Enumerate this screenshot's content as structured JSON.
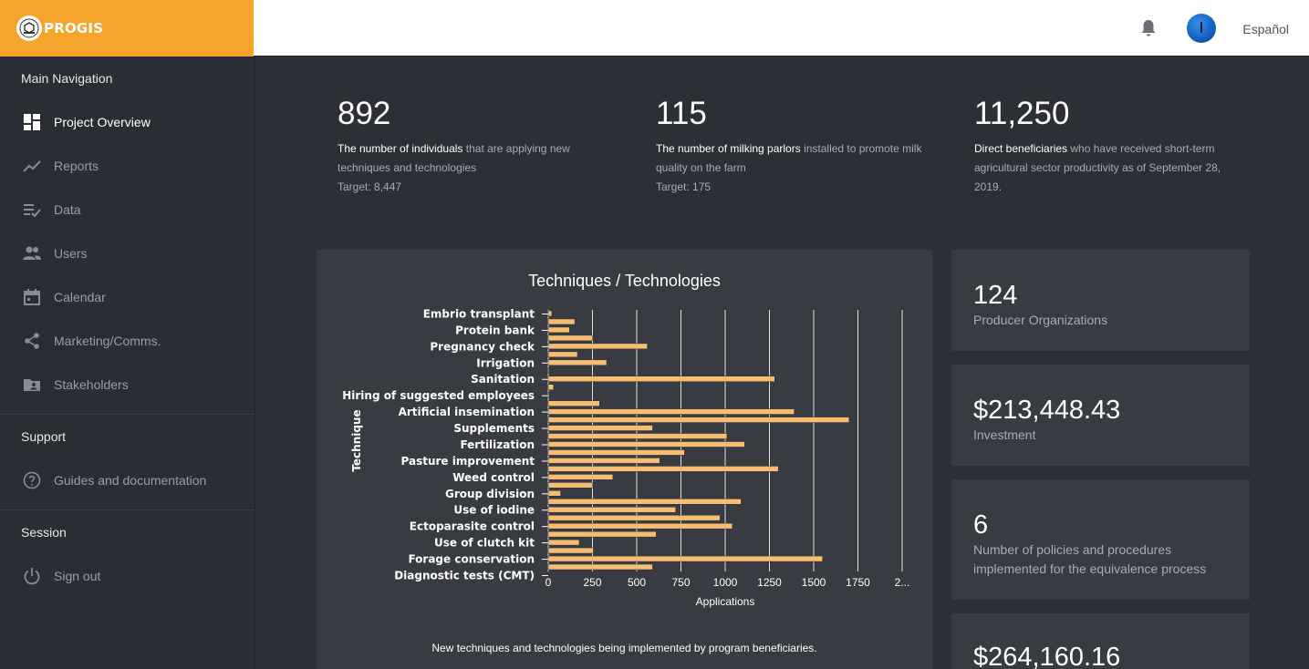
{
  "brand": {
    "name": "PROGIS"
  },
  "header": {
    "language": "Español",
    "icons": [
      "bell-icon",
      "avatar"
    ]
  },
  "sidebar": {
    "main_title": "Main Navigation",
    "items": [
      {
        "label": "Project Overview",
        "icon": "dashboard-icon",
        "active": true
      },
      {
        "label": "Reports",
        "icon": "trending-icon"
      },
      {
        "label": "Data",
        "icon": "list-check-icon"
      },
      {
        "label": "Users",
        "icon": "people-icon"
      },
      {
        "label": "Calendar",
        "icon": "calendar-icon"
      },
      {
        "label": "Marketing/Comms.",
        "icon": "share-icon"
      },
      {
        "label": "Stakeholders",
        "icon": "folder-person-icon"
      }
    ],
    "support_title": "Support",
    "support_items": [
      {
        "label": "Guides and documentation",
        "icon": "help-icon"
      }
    ],
    "session_title": "Session",
    "session_items": [
      {
        "label": "Sign out",
        "icon": "power-icon"
      }
    ]
  },
  "stats": [
    {
      "value": "892",
      "bold": "The number of individuals",
      "rest": " that are applying new techniques and technologies",
      "target": "Target: 8,447"
    },
    {
      "value": "115",
      "bold": "The number of milking parlors",
      "rest": " installed to promote milk quality on the farm",
      "target": "Target: 175"
    },
    {
      "value": "11,250",
      "bold": "Direct beneficiaries",
      "rest": " who have received short-term agricultural sector productivity as of September 28, 2019.",
      "target": ""
    }
  ],
  "kpis": [
    {
      "value": "124",
      "label": "Producer Organizations"
    },
    {
      "value": "$213,448.43",
      "label": "Investment"
    },
    {
      "value": "6",
      "label": "Number of policies and procedures implemented for the equivalence process"
    },
    {
      "value": "$264,160.16",
      "label": ""
    }
  ],
  "chart_data": {
    "type": "bar",
    "orientation": "horizontal",
    "title": "Techniques / Technologies",
    "xlabel": "Applications",
    "ylabel": "Technique",
    "caption": "New techniques and technologies being implemented by program beneficiaries.",
    "xlim": [
      0,
      2000
    ],
    "x_ticks": [
      "0",
      "250",
      "500",
      "750",
      "1000",
      "1250",
      "1500",
      "1750",
      "2..."
    ],
    "grid": true,
    "bar_color": "#f6be72",
    "labeled_categories": [
      "Embrio transplant",
      "Protein bank",
      "Pregnancy check",
      "Irrigation",
      "Sanitation",
      "Hiring of suggested employees",
      "Artificial insemination",
      "Supplements",
      "Fertilization",
      "Pasture improvement",
      "Weed control",
      "Group division",
      "Use of iodine",
      "Ectoparasite control",
      "Use of clutch kit",
      "Forage conservation",
      "Diagnostic tests (CMT)"
    ],
    "values": [
      20,
      150,
      120,
      250,
      560,
      165,
      330,
      5,
      1280,
      30,
      5,
      290,
      1390,
      1700,
      590,
      1010,
      1110,
      770,
      630,
      1300,
      365,
      250,
      70,
      1090,
      720,
      970,
      1040,
      610,
      175,
      255,
      1550,
      590
    ]
  }
}
